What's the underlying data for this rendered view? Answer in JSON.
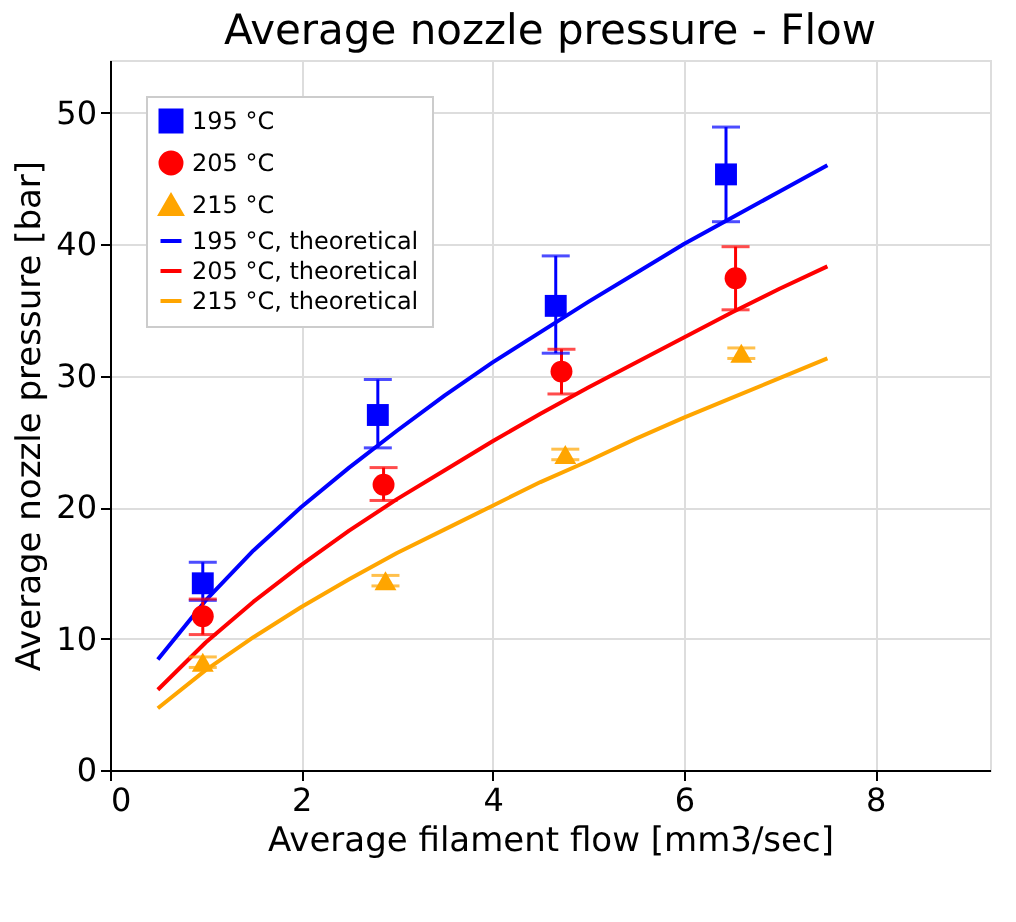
{
  "chart_data": {
    "type": "scatter",
    "title": "Average nozzle pressure - Flow",
    "xlabel": "Average filament flow [mm3/sec]",
    "ylabel": "Average nozzle pressure [bar]",
    "xlim": [
      0,
      9.2
    ],
    "xticks": [
      0,
      2,
      4,
      6,
      8
    ],
    "ylim": [
      0,
      54
    ],
    "yticks": [
      0,
      10,
      20,
      30,
      40,
      50
    ],
    "grid": true,
    "legend": "top left",
    "series": [
      {
        "name": "195 °C",
        "marker": "square",
        "color": "#0000ff",
        "x": [
          0.97,
          2.8,
          4.66,
          6.44
        ],
        "values": [
          14.2,
          27.0,
          35.3,
          45.3
        ],
        "errors": [
          [
            12.9,
            15.8
          ],
          [
            24.5,
            29.7
          ],
          [
            31.7,
            39.1
          ],
          [
            41.7,
            48.9
          ]
        ]
      },
      {
        "name": "205 °C",
        "marker": "circle",
        "color": "#ff0000",
        "x": [
          0.97,
          2.86,
          4.72,
          6.54
        ],
        "values": [
          11.7,
          21.7,
          30.3,
          37.4
        ],
        "errors": [
          [
            10.3,
            13.0
          ],
          [
            20.5,
            23.0
          ],
          [
            28.6,
            32.0
          ],
          [
            35.0,
            39.8
          ]
        ]
      },
      {
        "name": "215 °C",
        "marker": "triangle",
        "color": "#ffa500",
        "x": [
          0.97,
          2.88,
          4.76,
          6.6
        ],
        "values": [
          8.2,
          14.4,
          24.0,
          31.7
        ],
        "errors": [
          [
            7.8,
            8.6
          ],
          [
            14.0,
            14.8
          ],
          [
            23.6,
            24.4
          ],
          [
            31.3,
            32.1
          ]
        ]
      },
      {
        "name": "195 °C, theoretical",
        "type": "line",
        "color": "#0000ff",
        "x": [
          0.5,
          1,
          1.5,
          2,
          2.5,
          3,
          3.5,
          4,
          4.5,
          5,
          5.5,
          6,
          6.5,
          7,
          7.5
        ],
        "values": [
          8.4,
          12.9,
          16.7,
          20.0,
          23.0,
          25.8,
          28.5,
          31.0,
          33.3,
          35.6,
          37.8,
          40.0,
          42.0,
          44.0,
          46.0
        ]
      },
      {
        "name": "205 °C, theoretical",
        "type": "line",
        "color": "#ff0000",
        "x": [
          0.5,
          1,
          1.5,
          2,
          2.5,
          3,
          3.5,
          4,
          4.5,
          5,
          5.5,
          6,
          6.5,
          7,
          7.5
        ],
        "values": [
          6.1,
          9.7,
          12.8,
          15.6,
          18.2,
          20.6,
          22.8,
          25.0,
          27.1,
          29.1,
          31.0,
          32.9,
          34.8,
          36.6,
          38.3
        ]
      },
      {
        "name": "215 °C, theoretical",
        "type": "line",
        "color": "#ffa500",
        "x": [
          0.5,
          1,
          1.5,
          2,
          2.5,
          3,
          3.5,
          4,
          4.5,
          5,
          5.5,
          6,
          6.5,
          7,
          7.5
        ],
        "values": [
          4.7,
          7.6,
          10.1,
          12.4,
          14.5,
          16.5,
          18.3,
          20.1,
          21.9,
          23.5,
          25.2,
          26.8,
          28.3,
          29.8,
          31.3
        ]
      }
    ]
  }
}
